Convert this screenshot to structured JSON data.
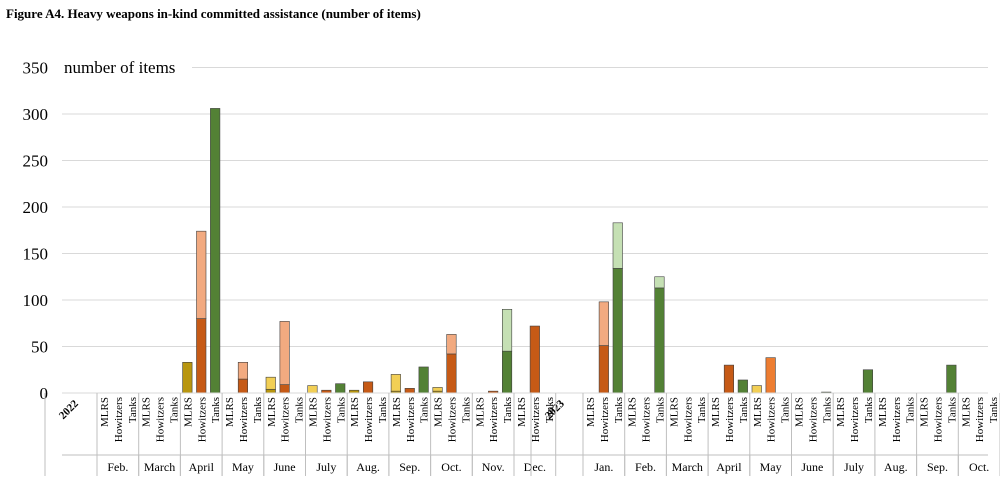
{
  "figure_title": "Figure A4. Heavy weapons in-kind committed assistance (number of items)",
  "colors": {
    "mlrs": "#b8960f",
    "mlrs_light": "#f2cf55",
    "howitzers": "#c65a16",
    "howitzers_light": "#f2aa80",
    "howitzers_alt": "#ed7d31",
    "tanks": "#538135",
    "tanks_light": "#c5e0b4",
    "grid": "#d9d9d9"
  },
  "chart_data": {
    "type": "bar",
    "stacked": true,
    "title": "",
    "ylabel": "number of items",
    "ylim": [
      0,
      350
    ],
    "yticks": [
      0,
      50,
      100,
      150,
      200,
      250,
      300,
      350
    ],
    "grid": true,
    "legend": "none",
    "years": [
      {
        "label": "2022",
        "months": [
          {
            "label": "Feb.",
            "cats": [
              {
                "name": "MLRS",
                "segs": []
              },
              {
                "name": "Howitzers",
                "segs": []
              },
              {
                "name": "Tanks",
                "segs": []
              }
            ]
          },
          {
            "label": "March",
            "cats": [
              {
                "name": "MLRS",
                "segs": []
              },
              {
                "name": "Howitzers",
                "segs": []
              },
              {
                "name": "Tanks",
                "segs": []
              }
            ]
          },
          {
            "label": "April",
            "cats": [
              {
                "name": "MLRS",
                "segs": [
                  {
                    "v": 33,
                    "c": "mlrs"
                  }
                ]
              },
              {
                "name": "Howitzers",
                "segs": [
                  {
                    "v": 80,
                    "c": "howitzers"
                  },
                  {
                    "v": 94,
                    "c": "howitzers_light"
                  }
                ]
              },
              {
                "name": "Tanks",
                "segs": [
                  {
                    "v": 306,
                    "c": "tanks"
                  }
                ]
              }
            ]
          },
          {
            "label": "May",
            "cats": [
              {
                "name": "MLRS",
                "segs": []
              },
              {
                "name": "Howitzers",
                "segs": [
                  {
                    "v": 15,
                    "c": "howitzers"
                  },
                  {
                    "v": 18,
                    "c": "howitzers_light"
                  }
                ]
              },
              {
                "name": "Tanks",
                "segs": []
              }
            ]
          },
          {
            "label": "June",
            "cats": [
              {
                "name": "MLRS",
                "segs": [
                  {
                    "v": 4,
                    "c": "mlrs"
                  },
                  {
                    "v": 13,
                    "c": "mlrs_light"
                  }
                ]
              },
              {
                "name": "Howitzers",
                "segs": [
                  {
                    "v": 9,
                    "c": "howitzers"
                  },
                  {
                    "v": 68,
                    "c": "howitzers_light"
                  }
                ]
              },
              {
                "name": "Tanks",
                "segs": []
              }
            ]
          },
          {
            "label": "July",
            "cats": [
              {
                "name": "MLRS",
                "segs": [
                  {
                    "v": 8,
                    "c": "mlrs_light"
                  }
                ]
              },
              {
                "name": "Howitzers",
                "segs": [
                  {
                    "v": 3,
                    "c": "howitzers"
                  }
                ]
              },
              {
                "name": "Tanks",
                "segs": [
                  {
                    "v": 10,
                    "c": "tanks"
                  }
                ]
              }
            ]
          },
          {
            "label": "Aug.",
            "cats": [
              {
                "name": "MLRS",
                "segs": [
                  {
                    "v": 3,
                    "c": "mlrs"
                  }
                ]
              },
              {
                "name": "Howitzers",
                "segs": [
                  {
                    "v": 12,
                    "c": "howitzers"
                  }
                ]
              },
              {
                "name": "Tanks",
                "segs": []
              }
            ]
          },
          {
            "label": "Sep.",
            "cats": [
              {
                "name": "MLRS",
                "segs": [
                  {
                    "v": 2,
                    "c": "mlrs"
                  },
                  {
                    "v": 18,
                    "c": "mlrs_light"
                  }
                ]
              },
              {
                "name": "Howitzers",
                "segs": [
                  {
                    "v": 5,
                    "c": "howitzers"
                  }
                ]
              },
              {
                "name": "Tanks",
                "segs": [
                  {
                    "v": 28,
                    "c": "tanks"
                  }
                ]
              }
            ]
          },
          {
            "label": "Oct.",
            "cats": [
              {
                "name": "MLRS",
                "segs": [
                  {
                    "v": 2,
                    "c": "mlrs"
                  },
                  {
                    "v": 4,
                    "c": "mlrs_light"
                  }
                ]
              },
              {
                "name": "Howitzers",
                "segs": [
                  {
                    "v": 42,
                    "c": "howitzers"
                  },
                  {
                    "v": 21,
                    "c": "howitzers_light"
                  }
                ]
              },
              {
                "name": "Tanks",
                "segs": []
              }
            ]
          },
          {
            "label": "Nov.",
            "cats": [
              {
                "name": "MLRS",
                "segs": []
              },
              {
                "name": "Howitzers",
                "segs": [
                  {
                    "v": 2,
                    "c": "howitzers"
                  }
                ]
              },
              {
                "name": "Tanks",
                "segs": [
                  {
                    "v": 45,
                    "c": "tanks"
                  },
                  {
                    "v": 45,
                    "c": "tanks_light"
                  }
                ]
              }
            ]
          },
          {
            "label": "Dec.",
            "cats": [
              {
                "name": "MLRS",
                "segs": []
              },
              {
                "name": "Howitzers",
                "segs": [
                  {
                    "v": 72,
                    "c": "howitzers"
                  }
                ]
              },
              {
                "name": "Tanks",
                "segs": []
              }
            ]
          }
        ]
      },
      {
        "label": "2023",
        "months": [
          {
            "label": "Jan.",
            "cats": [
              {
                "name": "MLRS",
                "segs": []
              },
              {
                "name": "Howitzers",
                "segs": [
                  {
                    "v": 51,
                    "c": "howitzers"
                  },
                  {
                    "v": 47,
                    "c": "howitzers_light"
                  }
                ]
              },
              {
                "name": "Tanks",
                "segs": [
                  {
                    "v": 134,
                    "c": "tanks"
                  },
                  {
                    "v": 49,
                    "c": "tanks_light"
                  }
                ]
              }
            ]
          },
          {
            "label": "Feb.",
            "cats": [
              {
                "name": "MLRS",
                "segs": []
              },
              {
                "name": "Howitzers",
                "segs": []
              },
              {
                "name": "Tanks",
                "segs": [
                  {
                    "v": 113,
                    "c": "tanks"
                  },
                  {
                    "v": 12,
                    "c": "tanks_light"
                  }
                ]
              }
            ]
          },
          {
            "label": "March",
            "cats": [
              {
                "name": "MLRS",
                "segs": []
              },
              {
                "name": "Howitzers",
                "segs": []
              },
              {
                "name": "Tanks",
                "segs": []
              }
            ]
          },
          {
            "label": "April",
            "cats": [
              {
                "name": "MLRS",
                "segs": []
              },
              {
                "name": "Howitzers",
                "segs": [
                  {
                    "v": 30,
                    "c": "howitzers"
                  }
                ]
              },
              {
                "name": "Tanks",
                "segs": [
                  {
                    "v": 14,
                    "c": "tanks"
                  }
                ]
              }
            ]
          },
          {
            "label": "May",
            "cats": [
              {
                "name": "MLRS",
                "segs": [
                  {
                    "v": 8,
                    "c": "mlrs_light"
                  }
                ]
              },
              {
                "name": "Howitzers",
                "segs": [
                  {
                    "v": 38,
                    "c": "howitzers_alt"
                  }
                ]
              },
              {
                "name": "Tanks",
                "segs": []
              }
            ]
          },
          {
            "label": "June",
            "cats": [
              {
                "name": "MLRS",
                "segs": []
              },
              {
                "name": "Howitzers",
                "segs": []
              },
              {
                "name": "Tanks",
                "segs": [
                  {
                    "v": 1,
                    "c": "tanks"
                  }
                ]
              }
            ]
          },
          {
            "label": "July",
            "cats": [
              {
                "name": "MLRS",
                "segs": []
              },
              {
                "name": "Howitzers",
                "segs": []
              },
              {
                "name": "Tanks",
                "segs": [
                  {
                    "v": 25,
                    "c": "tanks"
                  }
                ]
              }
            ]
          },
          {
            "label": "Aug.",
            "cats": [
              {
                "name": "MLRS",
                "segs": []
              },
              {
                "name": "Howitzers",
                "segs": []
              },
              {
                "name": "Tanks",
                "segs": []
              }
            ]
          },
          {
            "label": "Sep.",
            "cats": [
              {
                "name": "MLRS",
                "segs": []
              },
              {
                "name": "Howitzers",
                "segs": []
              },
              {
                "name": "Tanks",
                "segs": [
                  {
                    "v": 30,
                    "c": "tanks"
                  }
                ]
              }
            ]
          },
          {
            "label": "Oct.",
            "cats": [
              {
                "name": "MLRS",
                "segs": []
              },
              {
                "name": "Howitzers",
                "segs": []
              },
              {
                "name": "Tanks",
                "segs": []
              }
            ]
          }
        ]
      }
    ]
  }
}
